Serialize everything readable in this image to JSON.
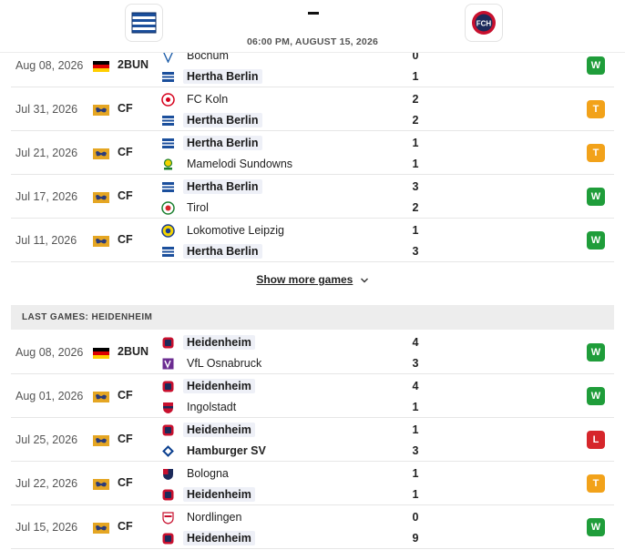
{
  "header": {
    "match_time": "06:00 PM, AUGUST 15, 2026",
    "home_team": "Hertha Berlin",
    "away_team": "Heidenheim",
    "away_logo_text": "FCH"
  },
  "colors": {
    "win": "#1f9d3a",
    "draw": "#f2a21a",
    "loss": "#d6262b",
    "highlight": "#eef0f7"
  },
  "hertha_games": [
    {
      "date": "Aug 08, 2026",
      "comp_flag": "germany-flag-icon",
      "comp": "2BUN",
      "team1": "Bochum",
      "crest1": "bochum-crest-icon",
      "goals1": "0",
      "hl1": false,
      "team2": "Hertha Berlin",
      "crest2": "hertha-crest-icon",
      "goals2": "1",
      "hl2": true,
      "result": "W"
    },
    {
      "date": "Jul 31, 2026",
      "comp_flag": "world-flag-icon",
      "comp": "CF",
      "team1": "FC Koln",
      "crest1": "koln-crest-icon",
      "goals1": "2",
      "hl1": false,
      "team2": "Hertha Berlin",
      "crest2": "hertha-crest-icon",
      "goals2": "2",
      "hl2": true,
      "result": "T"
    },
    {
      "date": "Jul 21, 2026",
      "comp_flag": "world-flag-icon",
      "comp": "CF",
      "team1": "Hertha Berlin",
      "crest1": "hertha-crest-icon",
      "goals1": "1",
      "hl1": true,
      "team2": "Mamelodi Sundowns",
      "crest2": "sundowns-crest-icon",
      "goals2": "1",
      "hl2": false,
      "result": "T"
    },
    {
      "date": "Jul 17, 2026",
      "comp_flag": "world-flag-icon",
      "comp": "CF",
      "team1": "Hertha Berlin",
      "crest1": "hertha-crest-icon",
      "goals1": "3",
      "hl1": true,
      "team2": "Tirol",
      "crest2": "tirol-crest-icon",
      "goals2": "2",
      "hl2": false,
      "result": "W"
    },
    {
      "date": "Jul 11, 2026",
      "comp_flag": "world-flag-icon",
      "comp": "CF",
      "team1": "Lokomotive Leipzig",
      "crest1": "lokomotive-crest-icon",
      "goals1": "1",
      "hl1": false,
      "team2": "Hertha Berlin",
      "crest2": "hertha-crest-icon",
      "goals2": "3",
      "hl2": true,
      "result": "W"
    }
  ],
  "show_more_label": "Show more games",
  "heidenheim_section_title": "LAST GAMES: HEIDENHEIM",
  "heidenheim_games": [
    {
      "date": "Aug 08, 2026",
      "comp_flag": "germany-flag-icon",
      "comp": "2BUN",
      "team1": "Heidenheim",
      "crest1": "heidenheim-crest-icon",
      "goals1": "4",
      "hl1": true,
      "team2": "VfL Osnabruck",
      "crest2": "osnabruck-crest-icon",
      "goals2": "3",
      "hl2": false,
      "result": "W"
    },
    {
      "date": "Aug 01, 2026",
      "comp_flag": "world-flag-icon",
      "comp": "CF",
      "team1": "Heidenheim",
      "crest1": "heidenheim-crest-icon",
      "goals1": "4",
      "hl1": true,
      "team2": "Ingolstadt",
      "crest2": "ingolstadt-crest-icon",
      "goals2": "1",
      "hl2": false,
      "result": "W"
    },
    {
      "date": "Jul 25, 2026",
      "comp_flag": "world-flag-icon",
      "comp": "CF",
      "team1": "Heidenheim",
      "crest1": "heidenheim-crest-icon",
      "goals1": "1",
      "hl1": true,
      "team2": "Hamburger SV",
      "crest2": "hamburg-crest-icon",
      "goals2": "3",
      "hl2": false,
      "bold2": true,
      "result": "L"
    },
    {
      "date": "Jul 22, 2026",
      "comp_flag": "world-flag-icon",
      "comp": "CF",
      "team1": "Bologna",
      "crest1": "bologna-crest-icon",
      "goals1": "1",
      "hl1": false,
      "team2": "Heidenheim",
      "crest2": "heidenheim-crest-icon",
      "goals2": "1",
      "hl2": true,
      "result": "T"
    },
    {
      "date": "Jul 15, 2026",
      "comp_flag": "world-flag-icon",
      "comp": "CF",
      "team1": "Nordlingen",
      "crest1": "nordlingen-crest-icon",
      "goals1": "0",
      "hl1": false,
      "team2": "Heidenheim",
      "crest2": "heidenheim-crest-icon",
      "goals2": "9",
      "hl2": true,
      "result": "W"
    }
  ]
}
